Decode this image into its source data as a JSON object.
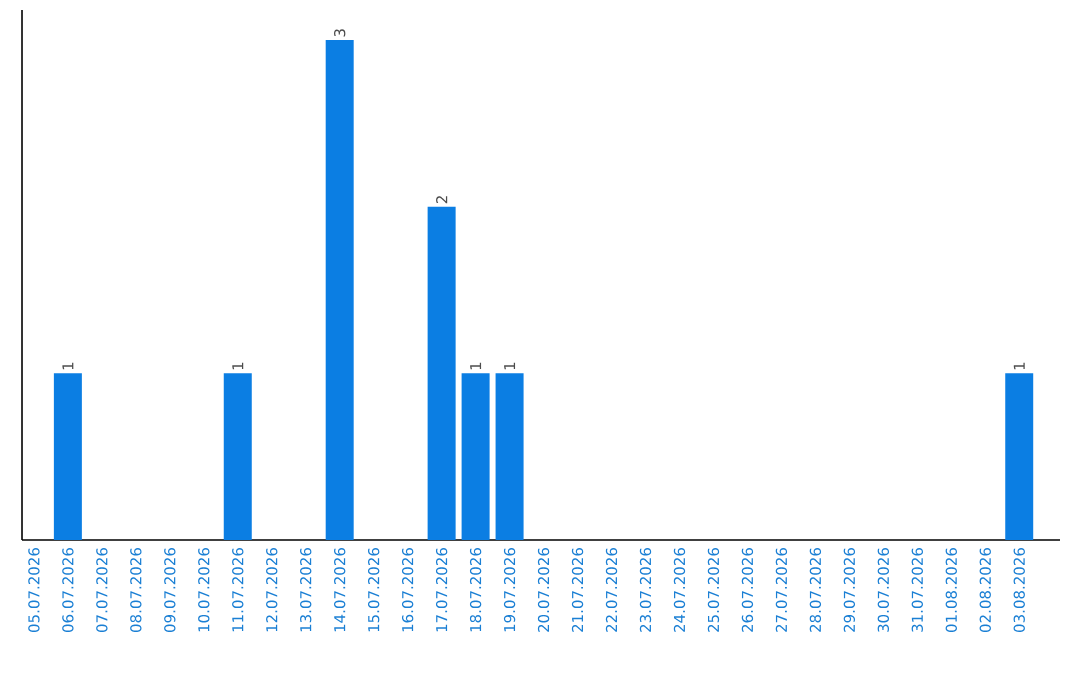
{
  "chart_data": {
    "type": "bar",
    "categories": [
      "05.07.2026",
      "06.07.2026",
      "07.07.2026",
      "08.07.2026",
      "09.07.2026",
      "10.07.2026",
      "11.07.2026",
      "12.07.2026",
      "13.07.2026",
      "14.07.2026",
      "15.07.2026",
      "16.07.2026",
      "17.07.2026",
      "18.07.2026",
      "19.07.2026",
      "20.07.2026",
      "21.07.2026",
      "22.07.2026",
      "23.07.2026",
      "24.07.2026",
      "25.07.2026",
      "26.07.2026",
      "27.07.2026",
      "28.07.2026",
      "29.07.2026",
      "30.07.2026",
      "31.07.2026",
      "01.08.2026",
      "02.08.2026",
      "03.08.2026"
    ],
    "values": [
      0,
      1,
      0,
      0,
      0,
      0,
      1,
      0,
      0,
      3,
      0,
      0,
      2,
      1,
      1,
      0,
      0,
      0,
      0,
      0,
      0,
      0,
      0,
      0,
      0,
      0,
      0,
      0,
      0,
      1
    ],
    "value_labels": [
      null,
      "1",
      null,
      null,
      null,
      null,
      "1",
      null,
      null,
      "3",
      null,
      null,
      "2",
      "1",
      "1",
      null,
      null,
      null,
      null,
      null,
      null,
      null,
      null,
      null,
      null,
      null,
      null,
      null,
      null,
      "1"
    ],
    "color": "#0b7ee3"
  }
}
